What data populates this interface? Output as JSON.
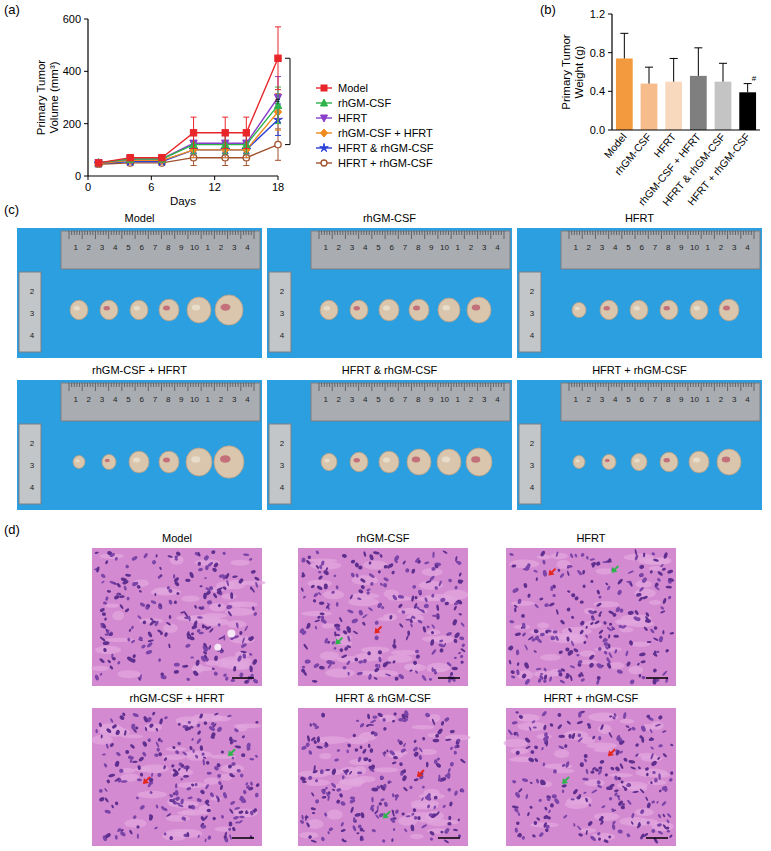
{
  "panel_letters": [
    "(a)",
    "(b)",
    "(c)",
    "(d)"
  ],
  "chart_data": [
    {
      "type": "line",
      "x_label": "Days",
      "y_label": "Primary Tumor Volume (mm³)",
      "x": [
        1,
        4,
        7,
        10,
        13,
        15,
        18
      ],
      "xlim": [
        0,
        18
      ],
      "xticks": [
        0,
        6,
        12,
        18
      ],
      "ylim": [
        0,
        600
      ],
      "yticks": [
        0,
        200,
        400,
        600
      ],
      "legend": "right",
      "annotations": [
        {
          "text": "#",
          "between": [
            "Model",
            "HFRT + rhGM-CSF"
          ]
        }
      ],
      "series": [
        {
          "name": "Model",
          "color": "#e8262a",
          "marker": "square",
          "values": [
            50,
            70,
            70,
            165,
            165,
            165,
            450
          ],
          "errors": [
            8,
            10,
            10,
            60,
            60,
            60,
            120
          ]
        },
        {
          "name": "rhGM-CSF",
          "color": "#2db34a",
          "marker": "triangle",
          "values": [
            50,
            65,
            65,
            120,
            120,
            120,
            270
          ],
          "errors": [
            6,
            8,
            8,
            35,
            35,
            35,
            70
          ]
        },
        {
          "name": "HFRT",
          "color": "#8a3fc9",
          "marker": "triangle-down",
          "values": [
            50,
            65,
            65,
            125,
            125,
            125,
            300
          ],
          "errors": [
            6,
            8,
            8,
            40,
            40,
            40,
            80
          ]
        },
        {
          "name": "rhGM-CSF + HFRT",
          "color": "#f08a1c",
          "marker": "diamond",
          "values": [
            48,
            60,
            60,
            100,
            100,
            100,
            245
          ],
          "errors": [
            6,
            8,
            8,
            30,
            30,
            30,
            70
          ]
        },
        {
          "name": "HFRT & rhGM-CSF",
          "color": "#2a3fd6",
          "marker": "star",
          "values": [
            48,
            55,
            55,
            100,
            100,
            100,
            215
          ],
          "errors": [
            6,
            8,
            8,
            30,
            30,
            30,
            60
          ]
        },
        {
          "name": "HFRT + rhGM-CSF",
          "color": "#a0522d",
          "marker": "circle-open",
          "values": [
            45,
            50,
            50,
            70,
            70,
            70,
            120
          ],
          "errors": [
            5,
            8,
            8,
            30,
            30,
            30,
            60
          ]
        }
      ]
    },
    {
      "type": "bar",
      "y_label": "Primary Tumor Weight (g)",
      "categories": [
        "Model",
        "rhGM-CSF",
        "HFRT",
        "rhGM-CSF + HFRT",
        "HFRT & rhGM-CSF",
        "HFRT + rhGM-CSF"
      ],
      "values": [
        0.74,
        0.48,
        0.5,
        0.56,
        0.5,
        0.39
      ],
      "errors": [
        0.26,
        0.17,
        0.24,
        0.29,
        0.19,
        0.09
      ],
      "colors": [
        "#f39a3f",
        "#f7bc8c",
        "#f9d9bd",
        "#7f7f7f",
        "#c4c4c4",
        "#000000"
      ],
      "ylim": [
        0,
        1.2
      ],
      "yticks": [
        {
          "value": 0,
          "label": "0.0"
        },
        0.4,
        0.8,
        1.2
      ],
      "annotations": [
        {
          "category": "HFRT + rhGM-CSF",
          "text": "#"
        }
      ]
    }
  ],
  "photos": {
    "titles": [
      "Model",
      "rhGM-CSF",
      "HFRT",
      "rhGM-CSF + HFRT",
      "HFRT & rhGM-CSF",
      "HFRT + rhGM-CSF"
    ],
    "ruler_top": [
      "1",
      "2",
      "3",
      "4",
      "5",
      "6",
      "7",
      "8",
      "9",
      "10",
      "1",
      "2",
      "3",
      "4"
    ],
    "ruler_side": [
      "2",
      "3",
      "4"
    ]
  },
  "histology": {
    "titles": [
      "Model",
      "rhGM-CSF",
      "HFRT",
      "rhGM-CSF + HFRT",
      "HFRT & rhGM-CSF",
      "HFRT + rhGM-CSF"
    ]
  }
}
